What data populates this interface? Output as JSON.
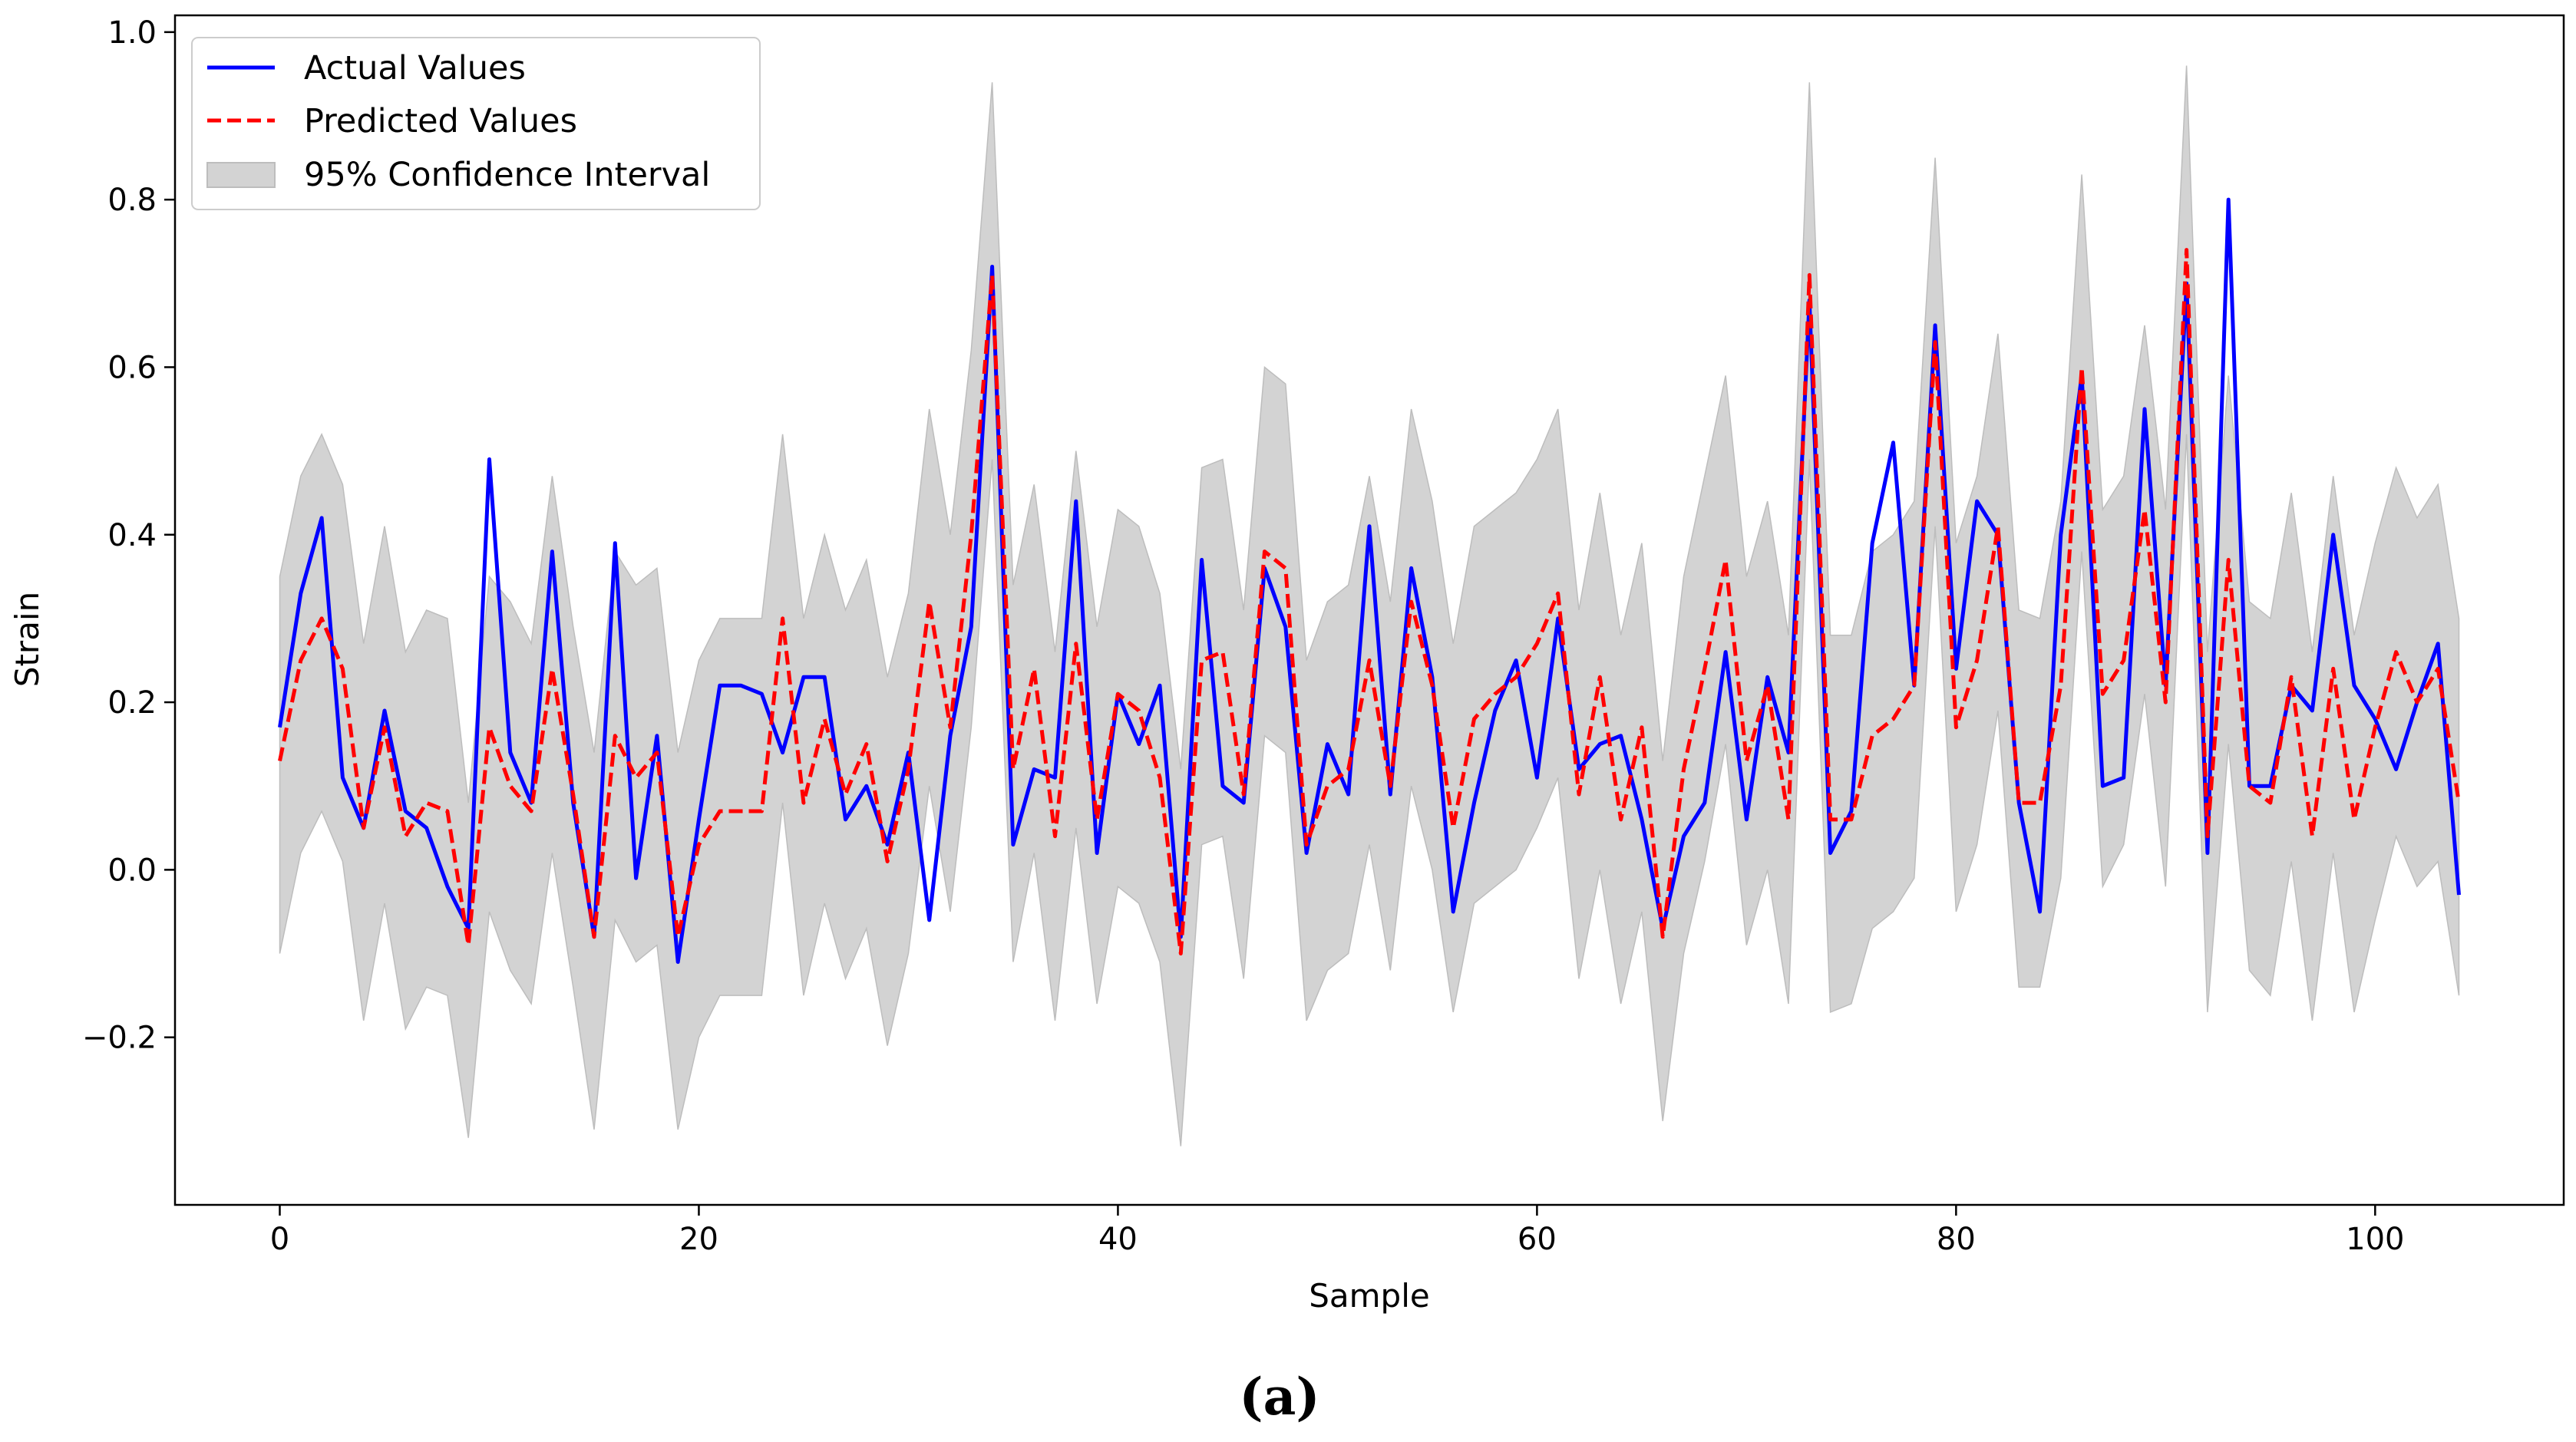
{
  "chart_data": {
    "type": "line",
    "title": "",
    "xlabel": "Sample",
    "ylabel": "Strain",
    "caption": "(a)",
    "xlim": [
      -5,
      109
    ],
    "ylim": [
      -0.4,
      1.02
    ],
    "xticks": [
      0,
      20,
      40,
      60,
      80,
      100
    ],
    "xtick_labels": [
      "0",
      "20",
      "40",
      "60",
      "80",
      "100"
    ],
    "yticks": [
      -0.2,
      0.0,
      0.2,
      0.4,
      0.6,
      0.8,
      1.0
    ],
    "ytick_labels": [
      "−0.2",
      "0.0",
      "0.2",
      "0.4",
      "0.6",
      "0.8",
      "1.0"
    ],
    "grid": false,
    "legend_position": "upper-left",
    "legend": {
      "actual": "Actual Values",
      "predicted": "Predicted Values",
      "ci": "95% Confidence Interval"
    },
    "colors": {
      "actual": "#0000ff",
      "predicted": "#ff0000",
      "ci": "#d3d3d3",
      "ci_edge": "#bdbdbd",
      "axis": "#000000"
    },
    "x": [
      0,
      1,
      2,
      3,
      4,
      5,
      6,
      7,
      8,
      9,
      10,
      11,
      12,
      13,
      14,
      15,
      16,
      17,
      18,
      19,
      20,
      21,
      22,
      23,
      24,
      25,
      26,
      27,
      28,
      29,
      30,
      31,
      32,
      33,
      34,
      35,
      36,
      37,
      38,
      39,
      40,
      41,
      42,
      43,
      44,
      45,
      46,
      47,
      48,
      49,
      50,
      51,
      52,
      53,
      54,
      55,
      56,
      57,
      58,
      59,
      60,
      61,
      62,
      63,
      64,
      65,
      66,
      67,
      68,
      69,
      70,
      71,
      72,
      73,
      74,
      75,
      76,
      77,
      78,
      79,
      80,
      81,
      82,
      83,
      84,
      85,
      86,
      87,
      88,
      89,
      90,
      91,
      92,
      93,
      94,
      95,
      96,
      97,
      98,
      99,
      100,
      101,
      102,
      103,
      104
    ],
    "series": [
      {
        "name": "Actual Values",
        "style": "solid",
        "values": [
          0.17,
          0.33,
          0.42,
          0.11,
          0.05,
          0.19,
          0.07,
          0.05,
          -0.02,
          -0.07,
          0.49,
          0.14,
          0.08,
          0.38,
          0.08,
          -0.08,
          0.39,
          -0.01,
          0.16,
          -0.11,
          0.06,
          0.22,
          0.22,
          0.21,
          0.14,
          0.23,
          0.23,
          0.06,
          0.1,
          0.03,
          0.14,
          -0.06,
          0.16,
          0.29,
          0.72,
          0.03,
          0.12,
          0.11,
          0.44,
          0.02,
          0.21,
          0.15,
          0.22,
          -0.08,
          0.37,
          0.1,
          0.08,
          0.36,
          0.29,
          0.02,
          0.15,
          0.09,
          0.41,
          0.09,
          0.36,
          0.23,
          -0.05,
          0.08,
          0.19,
          0.25,
          0.11,
          0.3,
          0.12,
          0.15,
          0.16,
          0.06,
          -0.07,
          0.04,
          0.08,
          0.26,
          0.06,
          0.23,
          0.14,
          0.68,
          0.02,
          0.07,
          0.39,
          0.51,
          0.22,
          0.65,
          0.24,
          0.44,
          0.4,
          0.08,
          -0.05,
          0.4,
          0.59,
          0.1,
          0.11,
          0.55,
          0.22,
          0.7,
          0.02,
          0.8,
          0.1,
          0.1,
          0.22,
          0.19,
          0.4,
          0.22,
          0.18,
          0.12,
          0.2,
          0.27,
          -0.03
        ]
      },
      {
        "name": "Predicted Values",
        "style": "dashed",
        "values": [
          0.13,
          0.25,
          0.3,
          0.24,
          0.05,
          0.17,
          0.04,
          0.08,
          0.07,
          -0.09,
          0.17,
          0.1,
          0.07,
          0.24,
          0.09,
          -0.08,
          0.16,
          0.11,
          0.14,
          -0.08,
          0.03,
          0.07,
          0.07,
          0.07,
          0.3,
          0.08,
          0.18,
          0.09,
          0.15,
          0.01,
          0.12,
          0.32,
          0.17,
          0.4,
          0.71,
          0.12,
          0.24,
          0.04,
          0.27,
          0.06,
          0.21,
          0.19,
          0.11,
          -0.1,
          0.25,
          0.26,
          0.09,
          0.38,
          0.36,
          0.03,
          0.1,
          0.12,
          0.25,
          0.1,
          0.32,
          0.22,
          0.05,
          0.18,
          0.21,
          0.23,
          0.27,
          0.33,
          0.09,
          0.23,
          0.06,
          0.17,
          -0.08,
          0.12,
          0.24,
          0.37,
          0.13,
          0.22,
          0.06,
          0.71,
          0.06,
          0.06,
          0.16,
          0.18,
          0.22,
          0.63,
          0.17,
          0.25,
          0.41,
          0.08,
          0.08,
          0.22,
          0.6,
          0.21,
          0.25,
          0.43,
          0.2,
          0.74,
          0.04,
          0.37,
          0.1,
          0.08,
          0.23,
          0.04,
          0.24,
          0.06,
          0.17,
          0.26,
          0.2,
          0.24,
          0.08
        ]
      }
    ],
    "ci_upper": [
      0.35,
      0.47,
      0.52,
      0.46,
      0.27,
      0.41,
      0.26,
      0.31,
      0.3,
      0.08,
      0.35,
      0.32,
      0.27,
      0.47,
      0.29,
      0.14,
      0.38,
      0.34,
      0.36,
      0.14,
      0.25,
      0.3,
      0.3,
      0.3,
      0.52,
      0.3,
      0.4,
      0.31,
      0.37,
      0.23,
      0.33,
      0.55,
      0.4,
      0.62,
      0.94,
      0.34,
      0.46,
      0.26,
      0.5,
      0.29,
      0.43,
      0.41,
      0.33,
      0.12,
      0.48,
      0.49,
      0.31,
      0.6,
      0.58,
      0.25,
      0.32,
      0.34,
      0.47,
      0.32,
      0.55,
      0.44,
      0.27,
      0.41,
      0.43,
      0.45,
      0.49,
      0.55,
      0.31,
      0.45,
      0.28,
      0.39,
      0.13,
      0.35,
      0.47,
      0.59,
      0.35,
      0.44,
      0.28,
      0.94,
      0.28,
      0.28,
      0.38,
      0.4,
      0.44,
      0.85,
      0.39,
      0.47,
      0.64,
      0.31,
      0.3,
      0.44,
      0.83,
      0.43,
      0.47,
      0.65,
      0.43,
      0.96,
      0.26,
      0.59,
      0.32,
      0.3,
      0.45,
      0.26,
      0.47,
      0.28,
      0.39,
      0.48,
      0.42,
      0.46,
      0.3
    ],
    "ci_lower": [
      -0.1,
      0.02,
      0.07,
      0.01,
      -0.18,
      -0.04,
      -0.19,
      -0.14,
      -0.15,
      -0.32,
      -0.05,
      -0.12,
      -0.16,
      0.02,
      -0.14,
      -0.31,
      -0.06,
      -0.11,
      -0.09,
      -0.31,
      -0.2,
      -0.15,
      -0.15,
      -0.15,
      0.08,
      -0.15,
      -0.04,
      -0.13,
      -0.07,
      -0.21,
      -0.1,
      0.1,
      -0.05,
      0.17,
      0.49,
      -0.11,
      0.02,
      -0.18,
      0.05,
      -0.16,
      -0.02,
      -0.04,
      -0.11,
      -0.33,
      0.03,
      0.04,
      -0.13,
      0.16,
      0.14,
      -0.18,
      -0.12,
      -0.1,
      0.03,
      -0.12,
      0.1,
      0.0,
      -0.17,
      -0.04,
      -0.02,
      0.0,
      0.05,
      0.11,
      -0.13,
      0.0,
      -0.16,
      -0.05,
      -0.3,
      -0.1,
      0.01,
      0.15,
      -0.09,
      0.0,
      -0.16,
      0.49,
      -0.17,
      -0.16,
      -0.07,
      -0.05,
      -0.01,
      0.41,
      -0.05,
      0.03,
      0.19,
      -0.14,
      -0.14,
      -0.01,
      0.38,
      -0.02,
      0.03,
      0.21,
      -0.02,
      0.52,
      -0.17,
      0.15,
      -0.12,
      -0.15,
      0.01,
      -0.18,
      0.02,
      -0.17,
      -0.06,
      0.04,
      -0.02,
      0.01,
      -0.15
    ]
  }
}
